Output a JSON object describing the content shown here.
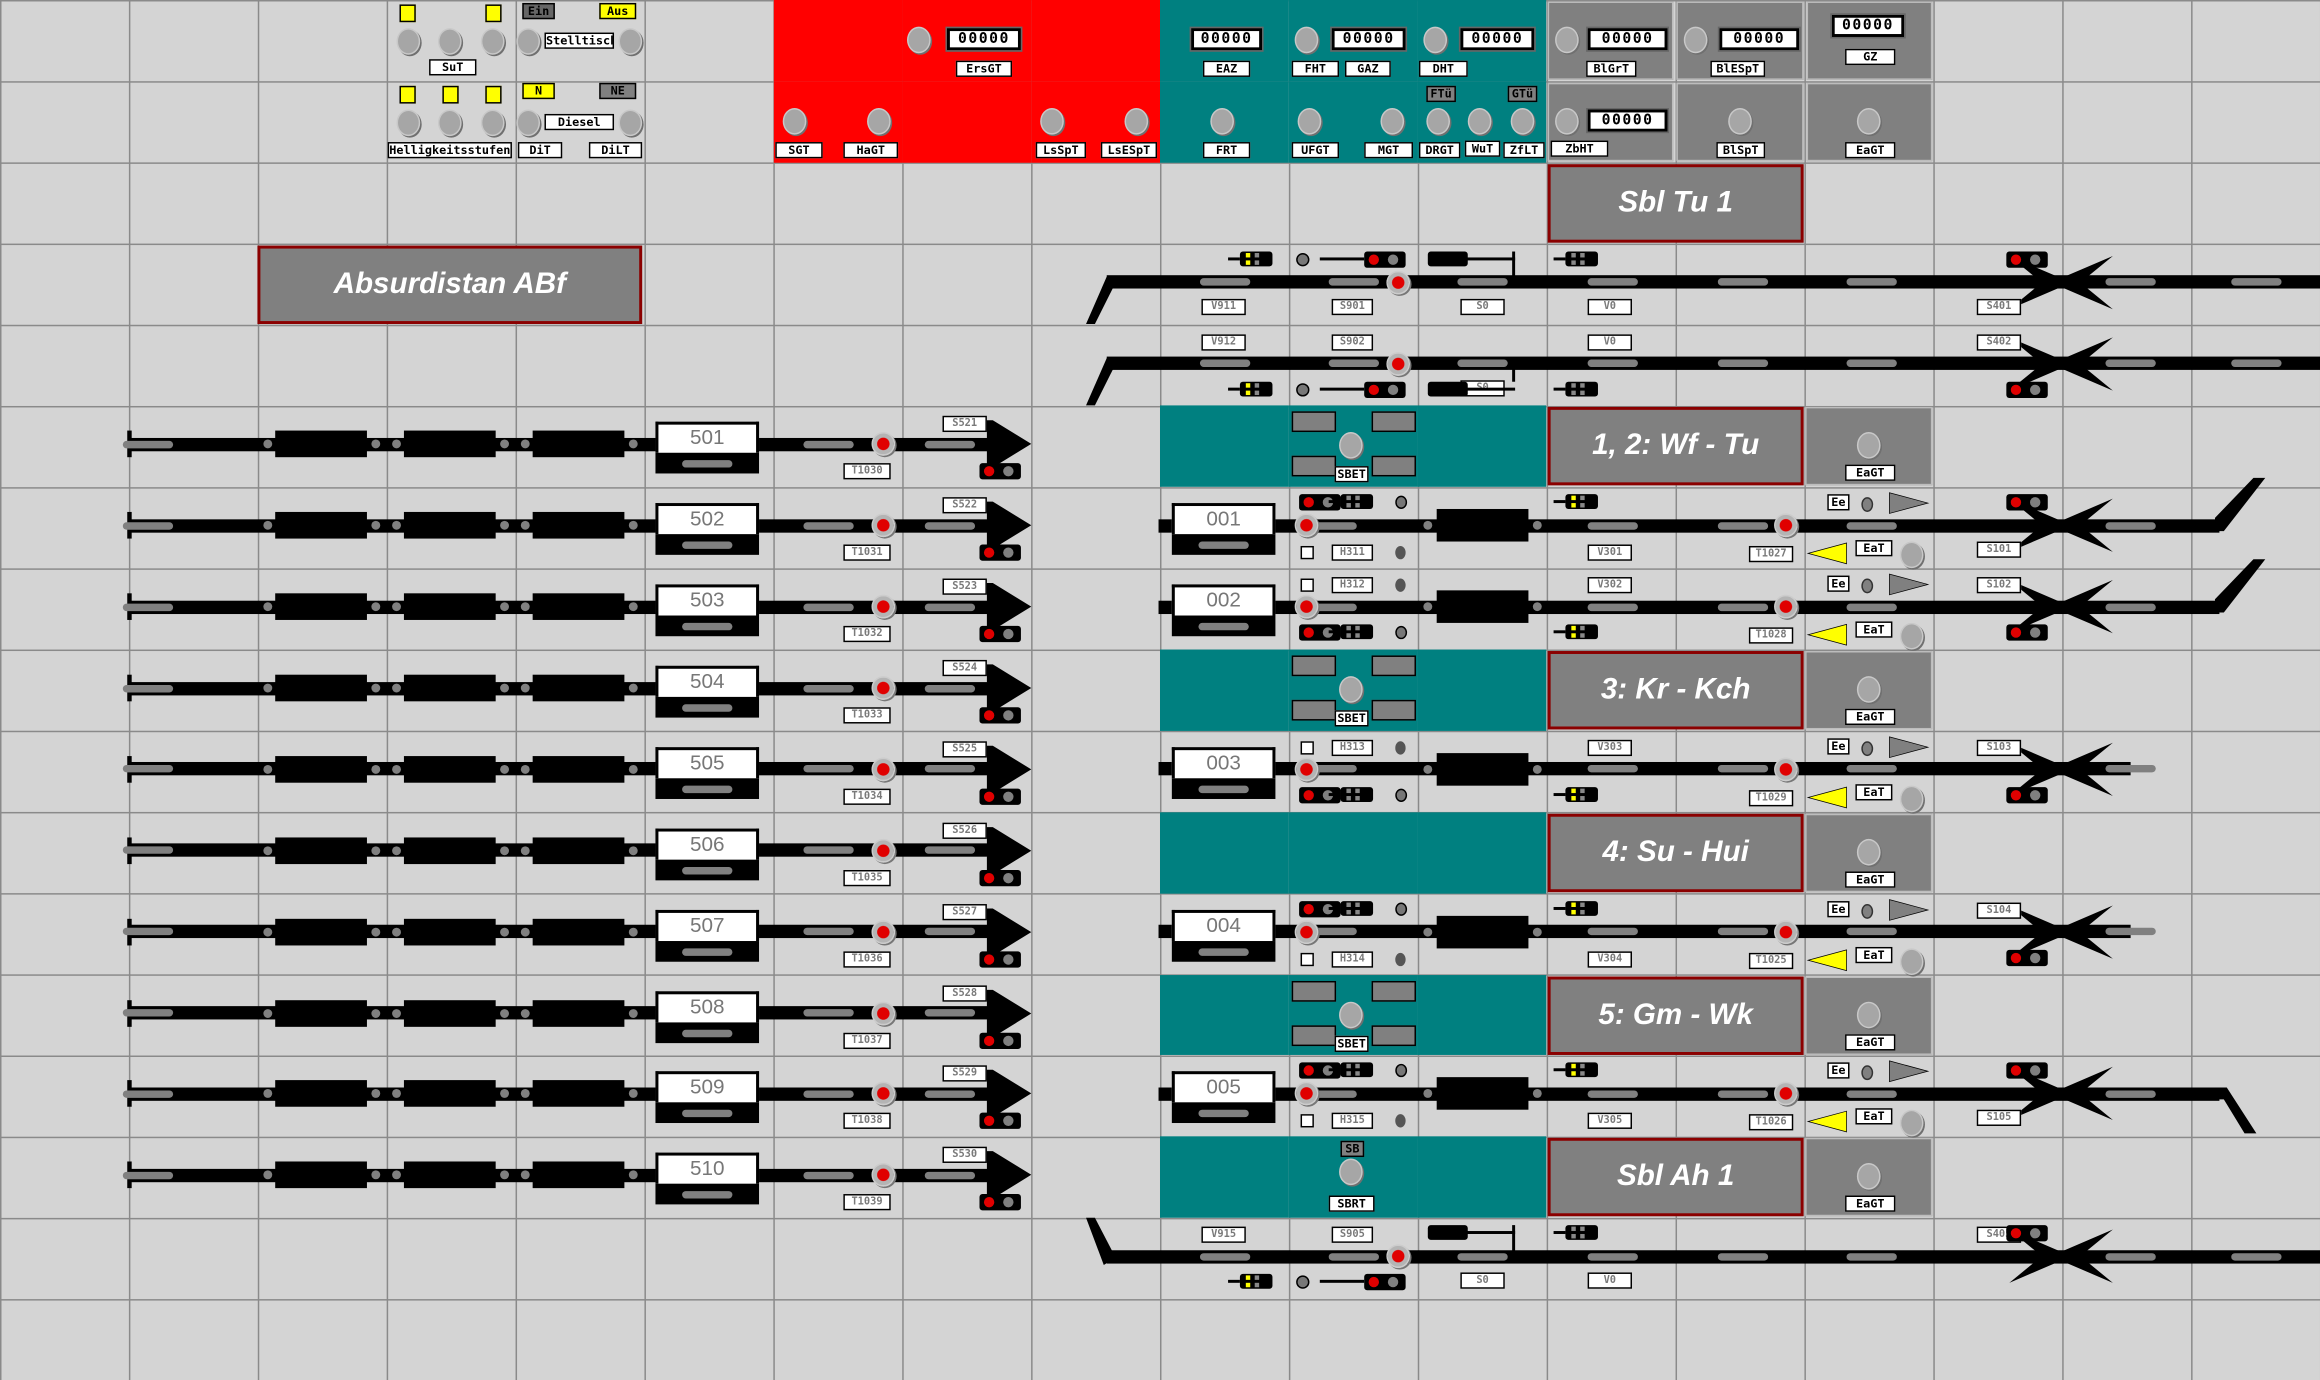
{
  "top_panel": {
    "sut": "SuT",
    "helligkeit": "Helligkeitsstufen",
    "ein": "Ein",
    "aus": "Aus",
    "stelltisch": "Stelltisch",
    "n": "N",
    "ne": "NE",
    "diesel": "Diesel",
    "dit": "DiT",
    "dilt": "DiLT",
    "ersgt": "ErsGT",
    "sgt": "SGT",
    "hagt": "HaGT",
    "lsspt": "LsSpT",
    "lsespt": "LsESpT",
    "eaz": "EAZ",
    "fht": "FHT",
    "gaz": "GAZ",
    "dht": "DHT",
    "frt": "FRT",
    "ufgt": "UFGT",
    "mgt": "MGT",
    "ftu": "FTü",
    "gtu": "GTü",
    "drgt": "DRGT",
    "wut": "WuT",
    "zflt": "ZfLT",
    "blgrt": "BlGrT",
    "blespt": "BlESpT",
    "gz": "GZ",
    "zbht": "ZbHT",
    "blspt": "BlSpT",
    "eagt": "EaGT",
    "counters": {
      "ersgt": "00000",
      "eaz": "00000",
      "gaz": "00000",
      "dht": "00000",
      "blgrt": "00000",
      "blespt": "00000",
      "gz": "00000",
      "zbht": "00000"
    }
  },
  "station_name": "Absurdistan ABf",
  "sections": [
    {
      "label": "Sbl Tu 1"
    },
    {
      "label": "1, 2: Wf - Tu",
      "button": "EaGT",
      "sb": "SBET"
    },
    {
      "label": "3: Kr - Kch",
      "button": "EaGT",
      "sb": "SBET"
    },
    {
      "label": "4: Su - Hui",
      "button": "EaGT"
    },
    {
      "label": "5: Gm - Wk",
      "button": "EaGT",
      "sb": "SBET"
    },
    {
      "label": "Sbl Ah 1",
      "button": "EaGT",
      "sb_top": "SB",
      "sb": "SBRT"
    }
  ],
  "left_tracks": [
    {
      "number": "501",
      "t": "T1030",
      "s": "S521"
    },
    {
      "number": "502",
      "t": "T1031",
      "s": "S522"
    },
    {
      "number": "503",
      "t": "T1032",
      "s": "S523"
    },
    {
      "number": "504",
      "t": "T1033",
      "s": "S524"
    },
    {
      "number": "505",
      "t": "T1034",
      "s": "S525"
    },
    {
      "number": "506",
      "t": "T1035",
      "s": "S526"
    },
    {
      "number": "507",
      "t": "T1036",
      "s": "S527"
    },
    {
      "number": "508",
      "t": "T1037",
      "s": "S528"
    },
    {
      "number": "509",
      "t": "T1038",
      "s": "S529"
    },
    {
      "number": "510",
      "t": "T1039",
      "s": "S530"
    }
  ],
  "right_tracks": [
    {
      "number": "001",
      "h": "H311",
      "v": "V301",
      "t": "T1027",
      "s": "S101",
      "ee": "Ee",
      "eat": "EaT"
    },
    {
      "number": "002",
      "h": "H312",
      "v": "V302",
      "t": "T1028",
      "s": "S102",
      "ee": "Ee",
      "eat": "EaT"
    },
    {
      "number": "003",
      "h": "H313",
      "v": "V303",
      "t": "T1029",
      "s": "S103",
      "ee": "Ee",
      "eat": "EaT"
    },
    {
      "number": "004",
      "h": "H314",
      "v": "V304",
      "t": "T1025",
      "s": "S104",
      "ee": "Ee",
      "eat": "EaT"
    },
    {
      "number": "005",
      "h": "H315",
      "v": "V305",
      "t": "T1026",
      "s": "S105",
      "ee": "Ee",
      "eat": "EaT"
    }
  ],
  "line_tracks": [
    {
      "v": "V911",
      "s": "S901",
      "s0": "S0",
      "v0": "V0",
      "exit": "S401"
    },
    {
      "v": "V912",
      "s": "S902",
      "s0": "S0",
      "v0": "V0",
      "exit": "S402"
    },
    {
      "v": "V915",
      "s": "S905",
      "s0": "S0",
      "v0": "V0",
      "exit": "S405"
    }
  ],
  "colors": {
    "background": "#d4d4d4",
    "track": "#000000",
    "panel_red": "#ff0000",
    "panel_teal": "#008080",
    "panel_gray": "#808080",
    "section_border": "#8b0000",
    "signal_red": "#e00000",
    "indicator_yellow": "#ffff00"
  }
}
